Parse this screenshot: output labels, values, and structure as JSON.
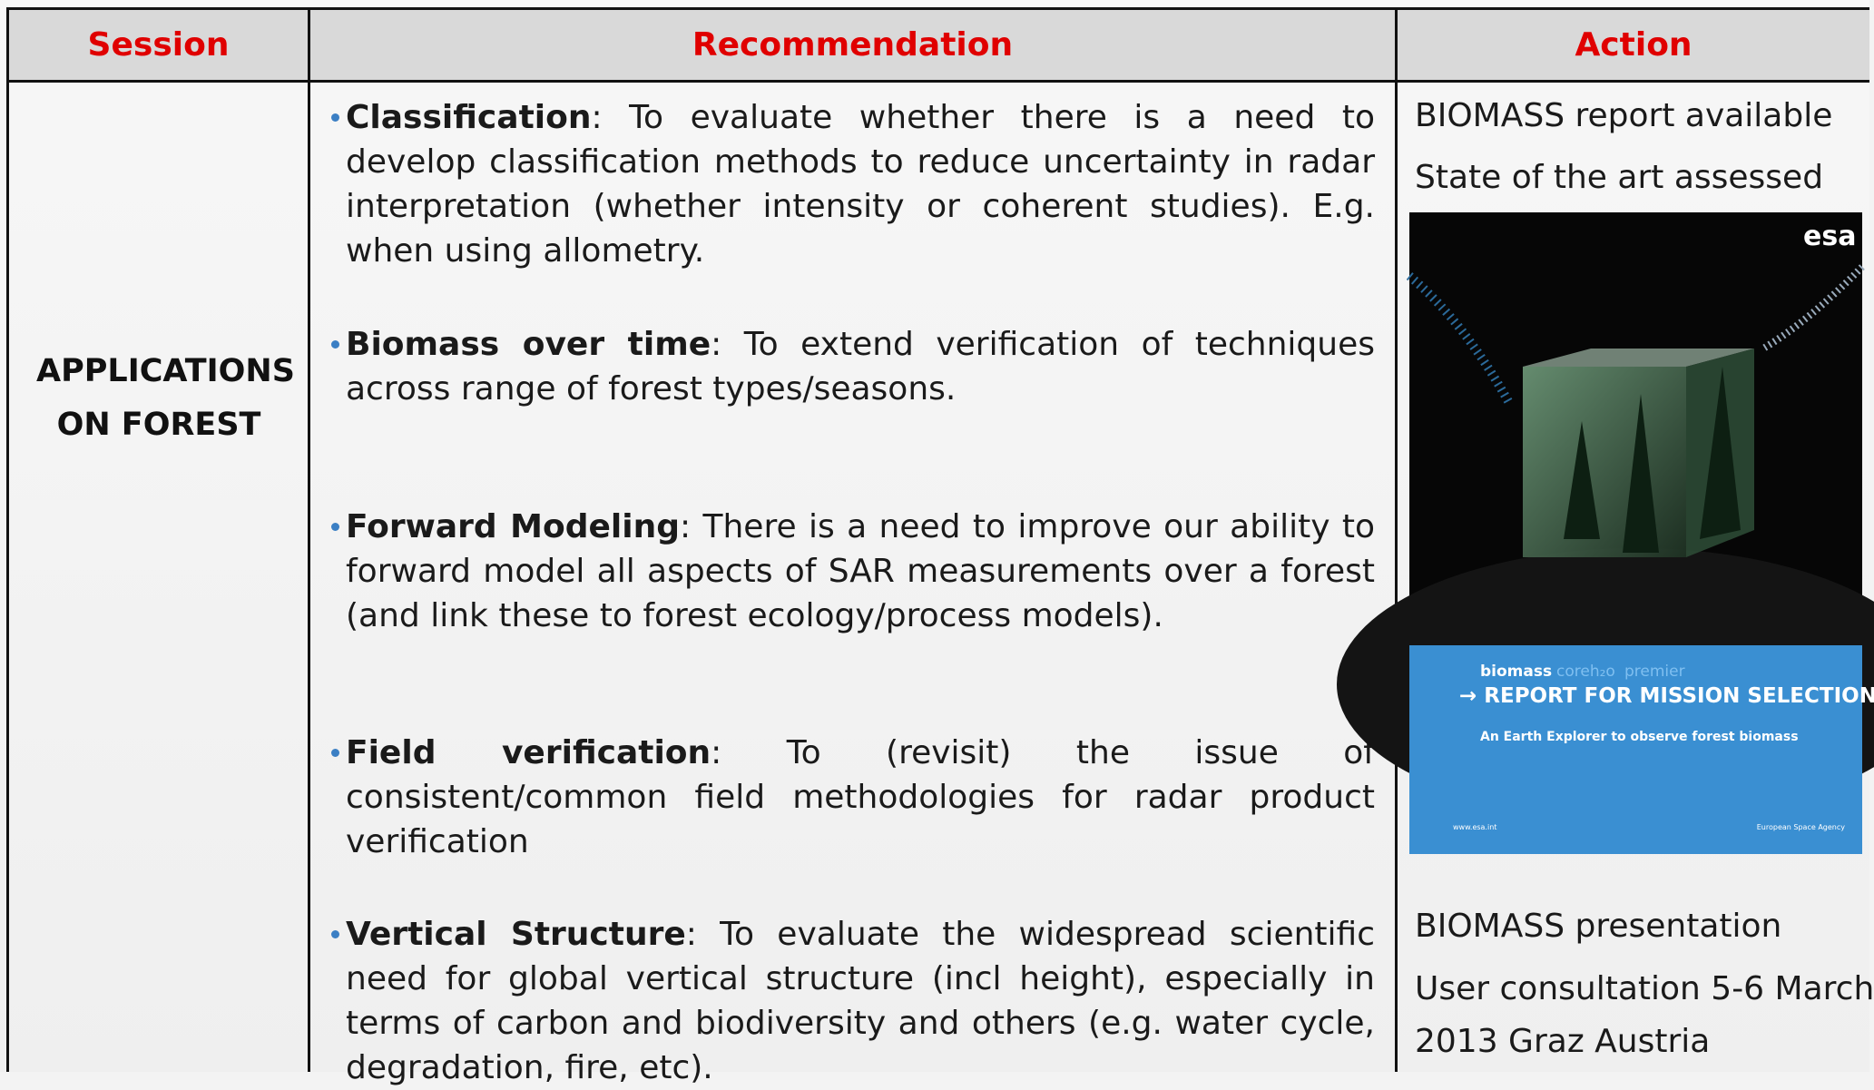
{
  "header": {
    "session": "Session",
    "recommendation": "Recommendation",
    "action": "Action"
  },
  "session": "APPLICATIONS ON FOREST",
  "recommendations": [
    {
      "term": "Classification",
      "text": ": To evaluate whether there is a need to develop classification methods to reduce uncertainty in radar interpretation (whether intensity or coherent studies). E.g. when using allometry."
    },
    {
      "term": "Biomass over time",
      "text": ": To extend verification of techniques across range of forest types/seasons."
    },
    {
      "term": "Forward Modeling",
      "text": ": There is a need to improve our ability to forward model all aspects of SAR measurements over a forest (and link these to forest ecology/process models)."
    },
    {
      "term": "Field verification",
      "text": ": To (revisit) the issue of consistent/common field methodologies for radar product verification"
    },
    {
      "term": "Vertical Structure",
      "text": ": To evaluate the widespread scientific need for global vertical structure (incl height), especially in terms of carbon and biodiversity and others (e.g. water cycle, degradation, fire, etc)."
    }
  ],
  "actions": {
    "top": [
      "BIOMASS report available",
      "State of the art assessed"
    ],
    "cover": {
      "logo": "esa",
      "mission": "biomass",
      "other_missions": [
        "coreh₂o",
        "premier"
      ],
      "title": "→ REPORT FOR MISSION SELECTION",
      "subtitle": "An Earth Explorer to observe forest biomass",
      "url": "www.esa.int",
      "agency": "European Space Agency"
    },
    "bottom": [
      "BIOMASS presentation",
      "User consultation 5-6 March",
      "2013 Graz Austria"
    ]
  }
}
